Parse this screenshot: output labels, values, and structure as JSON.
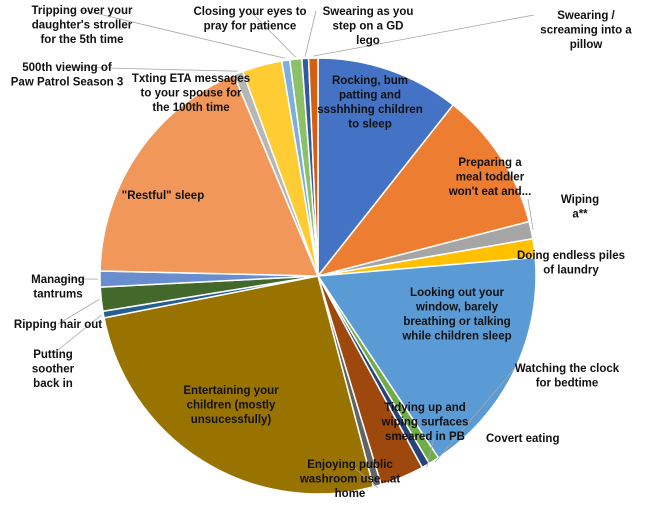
{
  "chart_data": {
    "type": "pie",
    "title": "",
    "unit": "percent",
    "start_angle_deg": 0,
    "direction": "clockwise",
    "slices": [
      {
        "name": "Rocking, bum patting and ssshhhing children to sleep",
        "lines": [
          "Rocking, bum",
          "patting and",
          "ssshhhing children",
          "to sleep"
        ],
        "value": 10.8,
        "color": "#4472C4"
      },
      {
        "name": "Preparing a meal toddler won't eat and...",
        "lines": [
          "Preparing a",
          "meal  toddler",
          "won't eat and..."
        ],
        "value": 10.5,
        "color": "#ED7D31"
      },
      {
        "name": "Wiping a**",
        "lines": [
          "Wiping",
          "a**"
        ],
        "value": 1.3,
        "color": "#A5A5A5"
      },
      {
        "name": "Doing endless piles of laundry",
        "lines": [
          "Doing endless piles",
          "of laundry"
        ],
        "value": 1.4,
        "color": "#FFC000"
      },
      {
        "name": "Looking out your window, barely breathing or talking while children sleep",
        "lines": [
          "Looking out your",
          "window, barely",
          "breathing or talking",
          "while children sleep"
        ],
        "value": 17.3,
        "color": "#5B9BD5"
      },
      {
        "name": "Watching the clock for bedtime",
        "lines": [
          "Watching the clock",
          "for bedtime"
        ],
        "value": 0.8,
        "color": "#70AD47"
      },
      {
        "name": "Covert eating",
        "lines": [
          "Covert eating"
        ],
        "value": 0.6,
        "color": "#264478"
      },
      {
        "name": "Tidying up and wiping surfaces smeared in PB",
        "lines": [
          "Tidying up and",
          "wiping surfaces",
          "smeared in PB"
        ],
        "value": 3.3,
        "color": "#9E480E"
      },
      {
        "name": "Enjoying public washroom use...at home",
        "lines": [
          "Enjoying public",
          "washroom use...at",
          "home"
        ],
        "value": 0.6,
        "color": "#636363"
      },
      {
        "name": "Entertaining your children (mostly unsucessfully)",
        "lines": [
          "Entertaining your",
          "children (mostly",
          "unsucessfully)"
        ],
        "value": 26.4,
        "color": "#997300"
      },
      {
        "name": "Putting soother back in",
        "lines": [
          "Putting",
          "soother",
          "back in"
        ],
        "value": 0.5,
        "color": "#255E91"
      },
      {
        "name": "Ripping hair out",
        "lines": [
          "Ripping hair out"
        ],
        "value": 1.8,
        "color": "#43682B"
      },
      {
        "name": "Managing tantrums",
        "lines": [
          "Managing",
          "tantrums"
        ],
        "value": 1.2,
        "color": "#698ED0"
      },
      {
        "name": "\"Restful\" sleep",
        "lines": [
          "\"Restful\" sleep"
        ],
        "value": 18.6,
        "color": "#F1975A"
      },
      {
        "name": "500th viewing of Paw Patrol Season 3",
        "lines": [
          "500th viewing of",
          "Paw Patrol Season 3"
        ],
        "value": 0.7,
        "color": "#B7B7B7"
      },
      {
        "name": "Txting ETA messages to your spouse for the 100th time",
        "lines": [
          "Txting ETA messages",
          "to your spouse for",
          "the 100th time"
        ],
        "value": 3.0,
        "color": "#FFCD33"
      },
      {
        "name": "Tripping over your daughter's stroller for the 5th time",
        "lines": [
          "Tripping over your",
          "daughter's stroller",
          "for the 5th time"
        ],
        "value": 0.6,
        "color": "#7CAFDD"
      },
      {
        "name": "Closing your eyes to pray for patience",
        "lines": [
          "Closing your eyes to",
          "pray for patience"
        ],
        "value": 0.9,
        "color": "#8CC168"
      },
      {
        "name": "Swearing as you step on a GD lego",
        "lines": [
          "Swearing as you",
          "step on a GD",
          "lego"
        ],
        "value": 0.5,
        "color": "#335AA1"
      },
      {
        "name": "Swearing / screaming into a pillow",
        "lines": [
          "Swearing /",
          "screaming into a",
          "pillow"
        ],
        "value": 0.7,
        "color": "#D26012"
      }
    ]
  }
}
